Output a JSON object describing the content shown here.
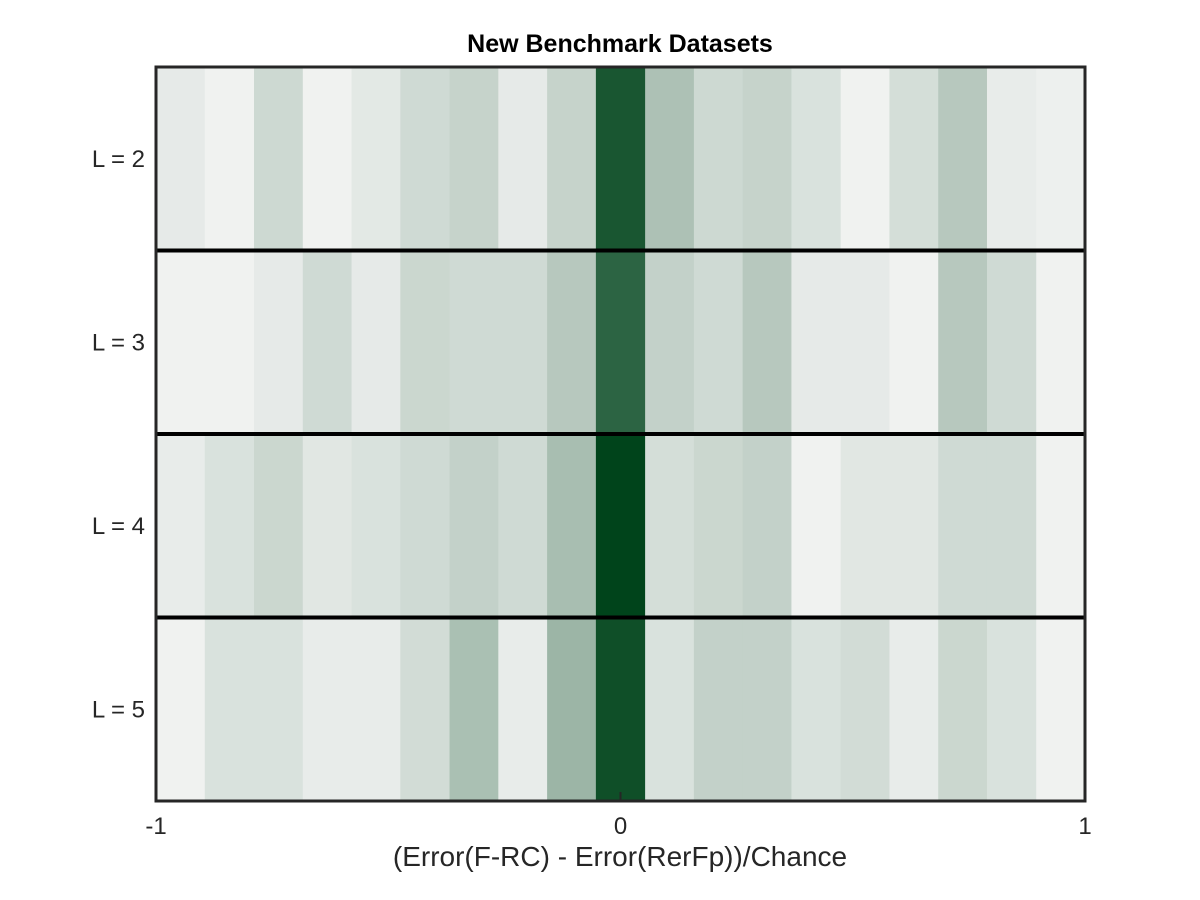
{
  "chart_data": {
    "type": "heatmap",
    "title": "New Benchmark Datasets",
    "xlabel": "(Error(F-RC) - Error(RerFp))/Chance",
    "xlim": [
      -1,
      1
    ],
    "xticks": [
      "-1",
      "0",
      "1"
    ],
    "bin_edges": [
      -1.0,
      -0.895,
      -0.789,
      -0.684,
      -0.579,
      -0.474,
      -0.368,
      -0.263,
      -0.158,
      -0.053,
      0.053,
      0.158,
      0.263,
      0.368,
      0.474,
      0.579,
      0.684,
      0.789,
      0.895,
      1.0
    ],
    "rows": [
      {
        "label": "L = 2",
        "values": [
          0.07,
          0.03,
          0.17,
          0.03,
          0.08,
          0.16,
          0.2,
          0.07,
          0.2,
          0.9,
          0.3,
          0.17,
          0.2,
          0.12,
          0.03,
          0.14,
          0.26,
          0.06,
          0.04
        ]
      },
      {
        "label": "L = 3",
        "values": [
          0.03,
          0.03,
          0.07,
          0.16,
          0.07,
          0.18,
          0.16,
          0.16,
          0.26,
          0.82,
          0.21,
          0.16,
          0.26,
          0.07,
          0.07,
          0.03,
          0.26,
          0.16,
          0.03
        ]
      },
      {
        "label": "L = 4",
        "values": [
          0.06,
          0.12,
          0.18,
          0.09,
          0.12,
          0.16,
          0.21,
          0.16,
          0.32,
          1.0,
          0.14,
          0.18,
          0.21,
          0.03,
          0.09,
          0.09,
          0.16,
          0.16,
          0.03
        ]
      },
      {
        "label": "L = 5",
        "values": [
          0.03,
          0.12,
          0.12,
          0.06,
          0.06,
          0.15,
          0.31,
          0.06,
          0.37,
          0.94,
          0.12,
          0.21,
          0.21,
          0.12,
          0.15,
          0.06,
          0.18,
          0.12,
          0.03
        ]
      }
    ],
    "colormap": {
      "low": "#f7f7f7",
      "high": "#00441b"
    },
    "row_separators": true
  }
}
